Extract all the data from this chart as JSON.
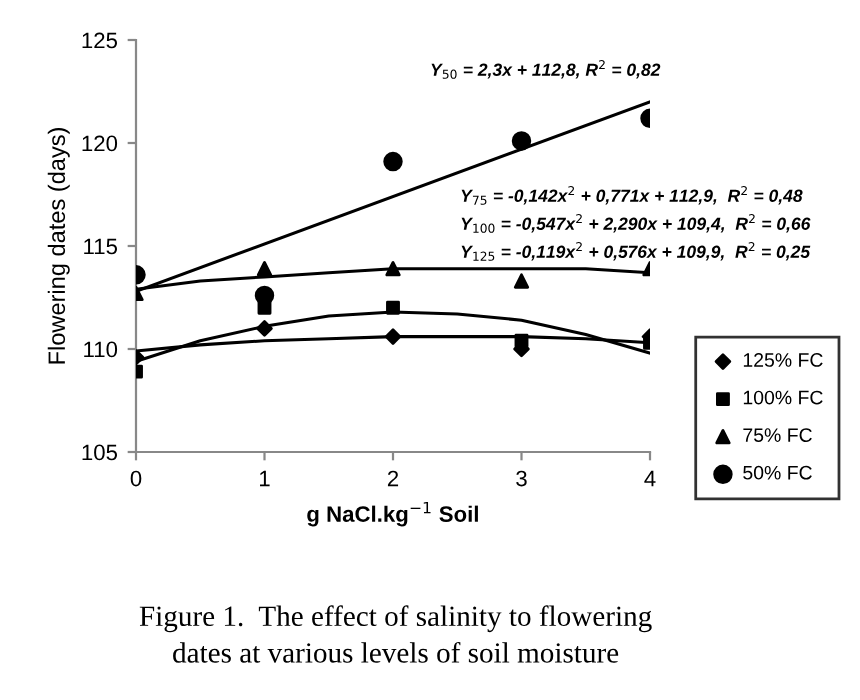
{
  "chart_data": {
    "type": "scatter",
    "xlabel": "g NaCl.kg$^{−1}$ Soil",
    "ylabel": "Flowering dates (days)",
    "x": [
      0,
      1,
      2,
      3,
      4
    ],
    "xlim": [
      0,
      4
    ],
    "xticks": [
      0,
      1,
      2,
      3,
      4
    ],
    "ylim": [
      105,
      125
    ],
    "yticks": [
      105,
      110,
      115,
      120,
      125
    ],
    "grid": false,
    "legend": "right",
    "series": [
      {
        "name": "125% FC",
        "color": "#000000",
        "marker": "diamond",
        "values": [
          109.6,
          111.0,
          110.6,
          110.0,
          110.6
        ]
      },
      {
        "name": "100% FC",
        "color": "#000000",
        "marker": "square",
        "values": [
          108.9,
          112.0,
          112.0,
          110.4,
          110.3
        ]
      },
      {
        "name": "75% FC",
        "color": "#000000",
        "marker": "triangle",
        "values": [
          112.7,
          113.9,
          113.9,
          113.3,
          113.9
        ]
      },
      {
        "name": "50% FC",
        "color": "#000000",
        "marker": "circle",
        "values": [
          113.6,
          112.6,
          119.1,
          120.1,
          121.2
        ]
      },
      {
        "type": "line",
        "color": "#000000",
        "x": [
          0,
          4
        ],
        "values": [
          112.8,
          122.0
        ]
      },
      {
        "type": "line",
        "color": "#000000",
        "x": [
          0,
          0.5,
          1,
          1.5,
          2,
          2.5,
          3,
          3.5,
          4
        ],
        "values": [
          112.9,
          113.3,
          113.5,
          113.7,
          113.9,
          113.9,
          113.9,
          113.9,
          113.7
        ]
      },
      {
        "type": "line",
        "color": "#000000",
        "x": [
          0,
          0.5,
          1,
          1.5,
          2,
          2.5,
          3,
          3.5,
          4
        ],
        "values": [
          109.4,
          110.4,
          111.1,
          111.6,
          111.8,
          111.7,
          111.4,
          110.7,
          109.8
        ]
      },
      {
        "type": "line",
        "color": "#000000",
        "x": [
          0,
          0.5,
          1,
          1.5,
          2,
          2.5,
          3,
          3.5,
          4
        ],
        "values": [
          109.9,
          110.2,
          110.4,
          110.5,
          110.6,
          110.6,
          110.6,
          110.5,
          110.3
        ]
      }
    ],
    "annotations": [
      "Y$_{50}$ = 2,3x + 112,8, R$^{2}$ = 0,82",
      "Y$_{75}$ = -0,142x$^{2}$ + 0,771x + 112,9,  R$^{2}$ = 0,48",
      "Y$_{100}$ = -0,547x$^{2}$ + 2,290x + 109,4,  R$^{2}$ = 0,66",
      "Y$_{125}$ = -0,119x$^{2}$ + 0,576x + 109,9,  R$^{2}$ = 0,25",
      "Figure 1.  The effect of salinity to flowering\ndates at various levels of soil moisture"
    ]
  }
}
